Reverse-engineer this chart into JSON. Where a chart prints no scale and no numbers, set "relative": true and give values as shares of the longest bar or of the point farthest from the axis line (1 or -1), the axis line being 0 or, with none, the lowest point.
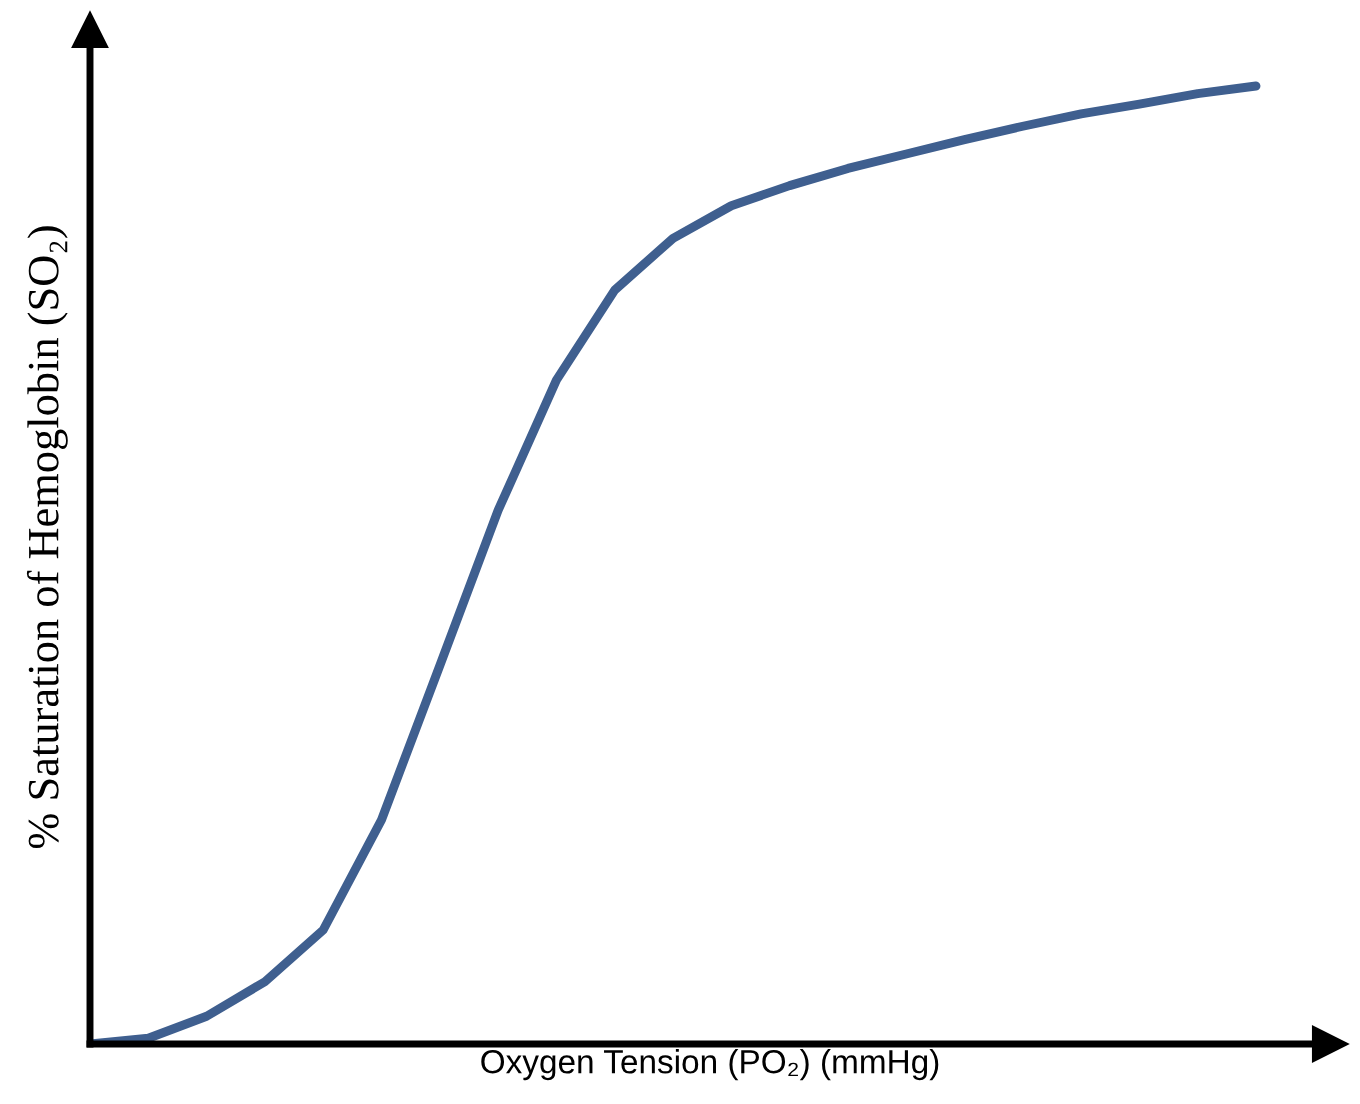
{
  "chart_data": {
    "type": "line",
    "relative": true,
    "xlabel": "Oxygen Tension (PO₂) (mmHg)",
    "ylabel": "% Saturation of Hemoglobin (SO₂)",
    "categories": [
      null,
      null,
      null,
      null,
      null,
      null,
      null,
      null,
      null,
      null,
      null,
      null,
      null,
      null,
      null,
      null,
      null,
      null,
      null,
      null,
      null
    ],
    "series": [
      {
        "color": "#3f5f8f",
        "values": [
          0,
          0.006,
          0.029,
          0.065,
          0.119,
          0.234,
          0.395,
          0.557,
          0.693,
          0.787,
          0.841,
          0.875,
          0.896,
          0.914,
          0.929,
          0.944,
          0.958,
          0.971,
          0.981,
          0.992,
          1.0
        ]
      }
    ],
    "marker": "none",
    "line_style": "solid"
  }
}
